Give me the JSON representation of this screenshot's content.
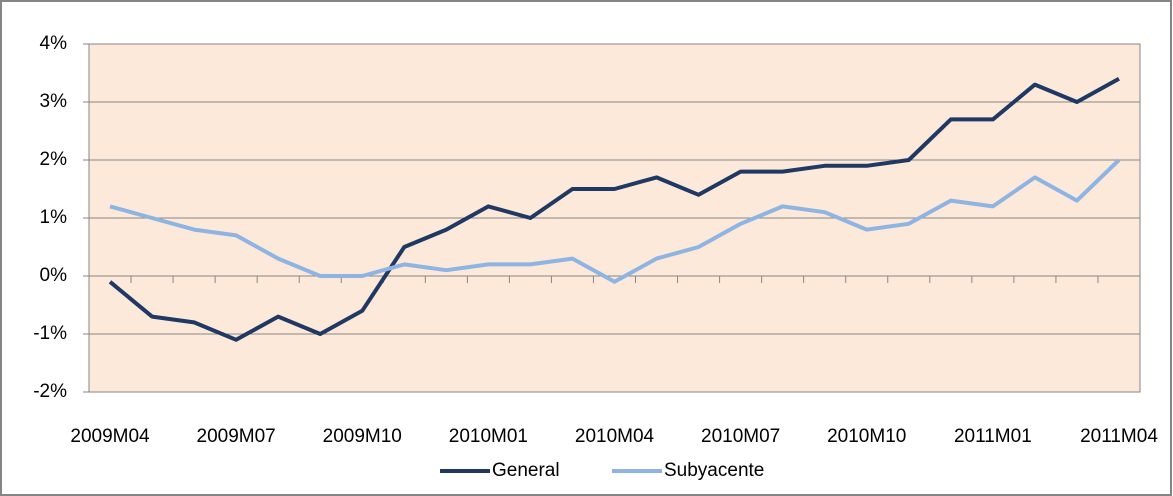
{
  "chart_data": {
    "type": "line",
    "categories": [
      "2009M04",
      null,
      null,
      "2009M07",
      null,
      null,
      "2009M10",
      null,
      null,
      "2010M01",
      null,
      null,
      "2010M04",
      null,
      null,
      "2010M07",
      null,
      null,
      "2010M10",
      null,
      null,
      "2011M01",
      null,
      null,
      "2011M04"
    ],
    "series": [
      {
        "name": "General",
        "color": "#1f3864",
        "values": [
          -0.1,
          -0.7,
          -0.8,
          -1.1,
          -0.7,
          -1.0,
          -0.6,
          0.5,
          0.8,
          1.2,
          1.0,
          1.5,
          1.5,
          1.7,
          1.4,
          1.8,
          1.8,
          1.9,
          1.9,
          2.0,
          2.7,
          2.7,
          3.3,
          3.0,
          3.4
        ]
      },
      {
        "name": "Subyacente",
        "color": "#8eb4e3",
        "values": [
          1.2,
          1.0,
          0.8,
          0.7,
          0.3,
          0.0,
          0.0,
          0.2,
          0.1,
          0.2,
          0.2,
          0.3,
          -0.1,
          0.3,
          0.5,
          0.9,
          1.2,
          1.1,
          0.8,
          0.9,
          1.3,
          1.2,
          1.7,
          1.3,
          2.0
        ]
      }
    ],
    "ylim": [
      -2,
      4
    ],
    "yticks": [
      {
        "value": -2,
        "label": "-2%"
      },
      {
        "value": -1,
        "label": "-1%"
      },
      {
        "value": 0,
        "label": "0%"
      },
      {
        "value": 1,
        "label": "1%"
      },
      {
        "value": 2,
        "label": "2%"
      },
      {
        "value": 3,
        "label": "3%"
      },
      {
        "value": 4,
        "label": "4%"
      }
    ],
    "grid": true,
    "legend": "bottom",
    "background": "#fde9d9"
  }
}
